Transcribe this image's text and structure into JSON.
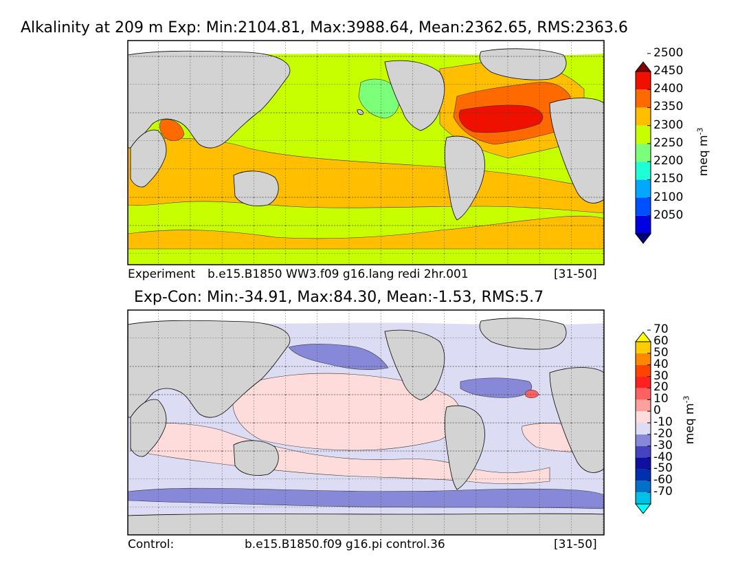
{
  "chart_data": [
    {
      "type": "heatmap",
      "title": "Alkalinity at 209 m Exp: Min:2104.81, Max:3988.64, Mean:2362.65, RMS:2363.6",
      "footer": {
        "left": "Experiment",
        "center": "b.e15.B1850 WW3.f09 g16.lang redi 2hr.001",
        "right": "[31-50]"
      },
      "colorbar": {
        "unit_label": "meq m",
        "unit_exponent": "-3",
        "levels": [
          2050,
          2100,
          2150,
          2200,
          2250,
          2300,
          2350,
          2400,
          2450,
          2500
        ],
        "tick_labels": [
          "2050",
          "2100",
          "2150",
          "2200",
          "2250",
          "2300",
          "2350",
          "2400",
          "2450",
          "2500"
        ],
        "colors": [
          "#00007f",
          "#0000e0",
          "#0050ff",
          "#00a8ff",
          "#1effd8",
          "#7cff79",
          "#c8ff00",
          "#ffbf00",
          "#ff6a00",
          "#f01000",
          "#7f0000"
        ],
        "extend": "both"
      },
      "dominant_value_range": [
        2300,
        2400
      ]
    },
    {
      "type": "heatmap",
      "title": "Exp-Con: Min:-34.91, Max:84.30, Mean:-1.53, RMS:5.7",
      "footer": {
        "left": "Control:",
        "center": "b.e15.B1850.f09 g16.pi control.36",
        "right": "[31-50]"
      },
      "colorbar": {
        "unit_label": "meq m",
        "unit_exponent": "-3",
        "levels": [
          -70,
          -60,
          -50,
          -40,
          -30,
          -20,
          -10,
          0,
          10,
          20,
          30,
          40,
          50,
          60,
          70
        ],
        "tick_labels": [
          "-70",
          "-60",
          "-50",
          "-40",
          "-30",
          "-20",
          "-10",
          "0",
          "10",
          "20",
          "30",
          "40",
          "50",
          "60",
          "70"
        ],
        "colors": [
          "#00ffff",
          "#00c0e8",
          "#0070c8",
          "#0030b0",
          "#1010a0",
          "#4444c0",
          "#8888d8",
          "#dcdcf4",
          "#ffdcdc",
          "#ffa0a0",
          "#ff6060",
          "#ff2020",
          "#ff4400",
          "#ff8800",
          "#ffcc00",
          "#ffff00"
        ],
        "extend": "both"
      },
      "dominant_value_range": [
        -10,
        10
      ]
    }
  ]
}
